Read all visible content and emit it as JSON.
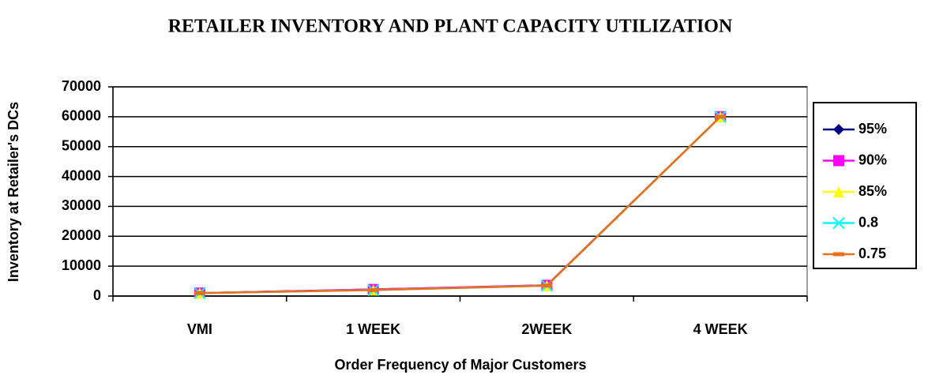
{
  "chart_data": {
    "type": "line",
    "title": "RETAILER INVENTORY AND PLANT CAPACITY UTILIZATION",
    "x_label": "Order Frequency of Major Customers",
    "y_label": "Inventory at Retailer's DCs",
    "categories": [
      "VMI",
      "1 WEEK",
      "2WEEK",
      "4 WEEK"
    ],
    "series": [
      {
        "name": "95%",
        "color": "#000080",
        "marker": "diamond",
        "values": [
          1000,
          2200,
          3600,
          60000
        ]
      },
      {
        "name": "90%",
        "color": "#ff00ff",
        "marker": "square",
        "values": [
          1000,
          2200,
          3600,
          60000
        ]
      },
      {
        "name": "85%",
        "color": "#ffff00",
        "marker": "triangle",
        "values": [
          1000,
          2000,
          3500,
          60000
        ]
      },
      {
        "name": "0.8",
        "color": "#00ffff",
        "marker": "x",
        "values": [
          1000,
          2000,
          3500,
          60000
        ]
      },
      {
        "name": "0.75",
        "color": "#e8701a",
        "marker": "dash",
        "values": [
          1000,
          2000,
          3500,
          60000
        ]
      }
    ],
    "ylim": [
      0,
      70000
    ],
    "yticks": [
      0,
      10000,
      20000,
      30000,
      40000,
      50000,
      60000,
      70000
    ],
    "grid": true,
    "legend": "right"
  }
}
